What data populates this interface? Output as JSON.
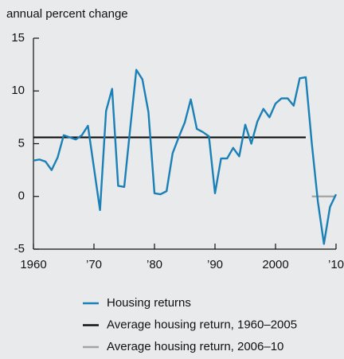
{
  "chart_data": {
    "type": "line",
    "y_label": "annual percent change",
    "x": [
      1960,
      1961,
      1962,
      1963,
      1964,
      1965,
      1966,
      1967,
      1968,
      1969,
      1970,
      1971,
      1972,
      1973,
      1974,
      1975,
      1976,
      1977,
      1978,
      1979,
      1980,
      1981,
      1982,
      1983,
      1984,
      1985,
      1986,
      1987,
      1988,
      1989,
      1990,
      1991,
      1992,
      1993,
      1994,
      1995,
      1996,
      1997,
      1998,
      1999,
      2000,
      2001,
      2002,
      2003,
      2004,
      2005,
      2006,
      2007,
      2008,
      2009,
      2010
    ],
    "series": [
      {
        "name": "Housing returns",
        "color": "#1a80b6",
        "values": [
          3.4,
          3.5,
          3.3,
          2.5,
          3.7,
          5.8,
          5.6,
          5.4,
          5.8,
          6.7,
          2.7,
          -1.3,
          8.1,
          10.2,
          1.0,
          0.9,
          6.5,
          12.0,
          11.1,
          8.0,
          0.3,
          0.2,
          0.5,
          4.1,
          5.6,
          7.0,
          9.2,
          6.4,
          6.1,
          5.7,
          0.3,
          3.6,
          3.6,
          4.6,
          3.8,
          6.8,
          5.0,
          7.1,
          8.3,
          7.5,
          8.8,
          9.3,
          9.3,
          8.6,
          11.2,
          11.3,
          5.0,
          -0.5,
          -4.5,
          -1.0,
          0.2
        ]
      },
      {
        "name": "Average housing return, 1960–2005",
        "color": "#111111",
        "values": [
          5.6,
          5.6,
          5.6,
          5.6,
          5.6,
          5.6,
          5.6,
          5.6,
          5.6,
          5.6,
          5.6,
          5.6,
          5.6,
          5.6,
          5.6,
          5.6,
          5.6,
          5.6,
          5.6,
          5.6,
          5.6,
          5.6,
          5.6,
          5.6,
          5.6,
          5.6,
          5.6,
          5.6,
          5.6,
          5.6,
          5.6,
          5.6,
          5.6,
          5.6,
          5.6,
          5.6,
          5.6,
          5.6,
          5.6,
          5.6,
          5.6,
          5.6,
          5.6,
          5.6,
          5.6,
          5.6,
          null,
          null,
          null,
          null,
          null
        ]
      },
      {
        "name": "Average housing return, 2006–10",
        "color": "#a3a3a3",
        "values": [
          null,
          null,
          null,
          null,
          null,
          null,
          null,
          null,
          null,
          null,
          null,
          null,
          null,
          null,
          null,
          null,
          null,
          null,
          null,
          null,
          null,
          null,
          null,
          null,
          null,
          null,
          null,
          null,
          null,
          null,
          null,
          null,
          null,
          null,
          null,
          null,
          null,
          null,
          null,
          null,
          null,
          null,
          null,
          null,
          null,
          null,
          0,
          0,
          0,
          0,
          0
        ]
      }
    ],
    "xlim": [
      1960,
      2010
    ],
    "xticks": [
      1960,
      {
        "value": 1970,
        "label": "’70"
      },
      {
        "value": 1980,
        "label": "’80"
      },
      {
        "value": 1990,
        "label": "’90"
      },
      2000,
      {
        "value": 2010,
        "label": "’10"
      }
    ],
    "ylim": [
      -5,
      15
    ],
    "yticks": [
      -5,
      0,
      5,
      10,
      15
    ]
  }
}
